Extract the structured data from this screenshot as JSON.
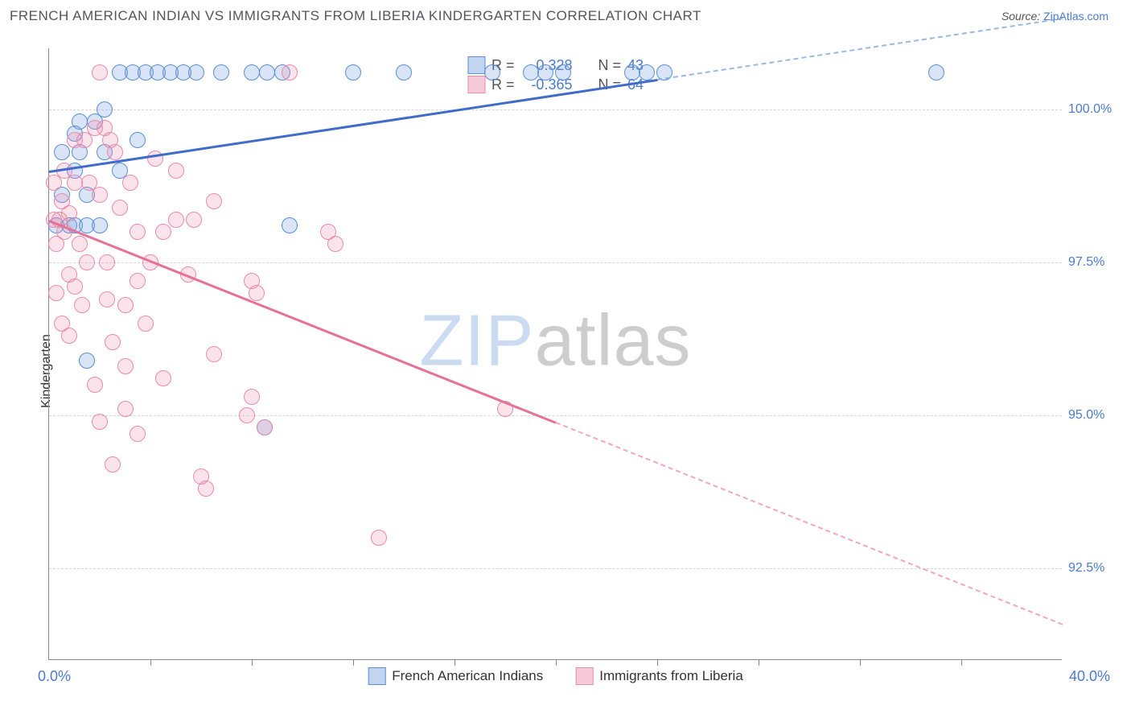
{
  "title": "FRENCH AMERICAN INDIAN VS IMMIGRANTS FROM LIBERIA KINDERGARTEN CORRELATION CHART",
  "source_prefix": "Source: ",
  "source_link": "ZipAtlas.com",
  "ylabel": "Kindergarten",
  "watermark": {
    "part1": "ZIP",
    "part2": "atlas"
  },
  "chart": {
    "type": "scatter",
    "xlim": [
      0,
      40
    ],
    "ylim": [
      91,
      101
    ],
    "yticks": [
      92.5,
      95.0,
      97.5,
      100.0
    ],
    "ytick_labels": [
      "92.5%",
      "95.0%",
      "97.5%",
      "100.0%"
    ],
    "xticks_minor": [
      4,
      8,
      12,
      16,
      20,
      24,
      28,
      32,
      36
    ],
    "xlab_min": "0.0%",
    "xlab_max": "40.0%",
    "background_color": "#ffffff",
    "grid_color": "#d6d6d6",
    "marker_radius": 10,
    "marker_opacity": 0.28,
    "line_width": 3
  },
  "series": [
    {
      "id": "blue",
      "name": "French American Indians",
      "color_fill": "#76a2de",
      "color_stroke": "#5b8fd6",
      "trend_color": "#3f6cc9",
      "R": "0.328",
      "N": "43",
      "trend": {
        "x1": 0,
        "y1": 99.0,
        "x2": 24,
        "y2": 100.5,
        "x2_dash": 40,
        "y2_dash": 101.5
      },
      "points": [
        [
          0.3,
          98.1
        ],
        [
          0.8,
          98.1
        ],
        [
          1.0,
          98.1
        ],
        [
          1.5,
          98.1
        ],
        [
          2.0,
          98.1
        ],
        [
          0.5,
          99.3
        ],
        [
          1.2,
          99.3
        ],
        [
          2.2,
          99.3
        ],
        [
          1.2,
          99.8
        ],
        [
          1.8,
          99.8
        ],
        [
          1.0,
          99.0
        ],
        [
          2.8,
          99.0
        ],
        [
          1.5,
          95.9
        ],
        [
          8.5,
          94.8
        ],
        [
          9.5,
          98.1
        ],
        [
          2.8,
          100.6
        ],
        [
          3.3,
          100.6
        ],
        [
          3.8,
          100.6
        ],
        [
          4.3,
          100.6
        ],
        [
          4.8,
          100.6
        ],
        [
          5.3,
          100.6
        ],
        [
          5.8,
          100.6
        ],
        [
          6.8,
          100.6
        ],
        [
          8.0,
          100.6
        ],
        [
          8.6,
          100.6
        ],
        [
          9.2,
          100.6
        ],
        [
          12.0,
          100.6
        ],
        [
          14.0,
          100.6
        ],
        [
          17.5,
          100.6
        ],
        [
          19.0,
          100.6
        ],
        [
          19.6,
          100.6
        ],
        [
          20.3,
          100.6
        ],
        [
          23.0,
          100.6
        ],
        [
          23.6,
          100.6
        ],
        [
          24.3,
          100.6
        ],
        [
          35.0,
          100.6
        ],
        [
          2.2,
          100.0
        ],
        [
          1.0,
          99.6
        ],
        [
          3.5,
          99.5
        ],
        [
          1.5,
          98.6
        ],
        [
          0.5,
          98.6
        ]
      ]
    },
    {
      "id": "pink",
      "name": "Immigrants from Liberia",
      "color_fill": "#ee89aa",
      "color_stroke": "#e98bab",
      "trend_color": "#e77197",
      "R": "-0.365",
      "N": "64",
      "trend": {
        "x1": 0,
        "y1": 98.2,
        "x2": 20,
        "y2": 94.9,
        "x2_dash": 40,
        "y2_dash": 91.6
      },
      "points": [
        [
          0.2,
          98.2
        ],
        [
          0.4,
          98.2
        ],
        [
          0.6,
          98.0
        ],
        [
          0.3,
          97.8
        ],
        [
          0.8,
          98.3
        ],
        [
          0.5,
          98.5
        ],
        [
          1.0,
          99.5
        ],
        [
          1.4,
          99.5
        ],
        [
          1.8,
          99.7
        ],
        [
          2.2,
          99.7
        ],
        [
          2.4,
          99.5
        ],
        [
          2.6,
          99.3
        ],
        [
          1.0,
          98.8
        ],
        [
          1.6,
          98.8
        ],
        [
          2.0,
          98.6
        ],
        [
          0.8,
          97.3
        ],
        [
          1.0,
          97.1
        ],
        [
          1.5,
          97.5
        ],
        [
          2.3,
          97.5
        ],
        [
          1.3,
          96.8
        ],
        [
          2.3,
          96.9
        ],
        [
          3.5,
          97.2
        ],
        [
          3.0,
          96.8
        ],
        [
          3.5,
          98.0
        ],
        [
          4.5,
          98.0
        ],
        [
          5.0,
          98.2
        ],
        [
          5.7,
          98.2
        ],
        [
          6.5,
          98.5
        ],
        [
          8.0,
          97.2
        ],
        [
          8.2,
          97.0
        ],
        [
          4.2,
          99.2
        ],
        [
          5.0,
          99.0
        ],
        [
          2.0,
          94.9
        ],
        [
          2.5,
          94.2
        ],
        [
          3.0,
          95.1
        ],
        [
          3.5,
          94.7
        ],
        [
          6.0,
          94.0
        ],
        [
          6.2,
          93.8
        ],
        [
          7.8,
          95.0
        ],
        [
          8.0,
          95.3
        ],
        [
          8.5,
          94.8
        ],
        [
          6.5,
          96.0
        ],
        [
          3.0,
          95.8
        ],
        [
          11.0,
          98.0
        ],
        [
          11.3,
          97.8
        ],
        [
          13.0,
          93.0
        ],
        [
          18.0,
          95.1
        ],
        [
          9.5,
          100.6
        ],
        [
          2.0,
          100.6
        ],
        [
          0.3,
          97.0
        ],
        [
          0.5,
          96.5
        ],
        [
          0.8,
          96.3
        ],
        [
          4.0,
          97.5
        ],
        [
          5.5,
          97.3
        ],
        [
          3.8,
          96.5
        ],
        [
          1.8,
          95.5
        ],
        [
          2.5,
          96.2
        ],
        [
          4.5,
          95.6
        ],
        [
          0.2,
          98.8
        ],
        [
          0.6,
          99.0
        ],
        [
          1.2,
          97.8
        ],
        [
          2.8,
          98.4
        ],
        [
          3.2,
          98.8
        ]
      ]
    }
  ],
  "legend_top": {
    "r_label": "R =",
    "n_label": "N ="
  },
  "legend_bottom": [
    {
      "series": "blue",
      "label": "French American Indians"
    },
    {
      "series": "pink",
      "label": "Immigrants from Liberia"
    }
  ]
}
